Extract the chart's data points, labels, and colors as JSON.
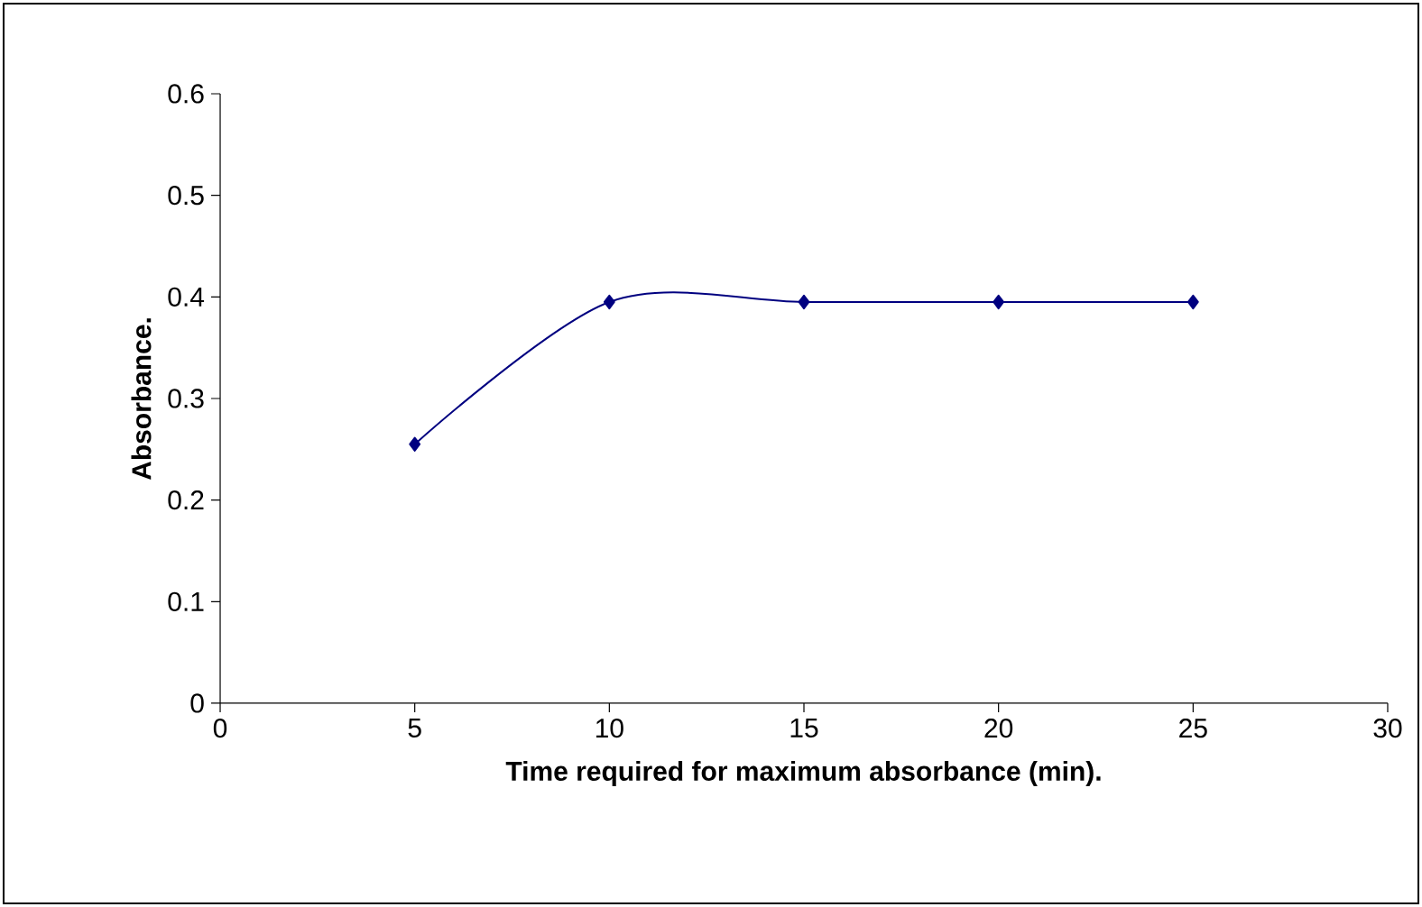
{
  "chart_data": {
    "type": "line",
    "xlabel": "Time required for maximum absorbance (min).",
    "ylabel": "Absorbance.",
    "x": [
      5,
      10,
      15,
      20,
      25
    ],
    "series": [
      {
        "color": "#000080",
        "values": [
          0.255,
          0.395,
          0.395,
          0.395,
          0.395
        ]
      }
    ],
    "xlim": [
      0,
      30
    ],
    "xticks": [
      0,
      5,
      10,
      15,
      20,
      25,
      30
    ],
    "ylim": [
      0,
      0.6
    ],
    "yticks": [
      0,
      0.1,
      0.2,
      0.3,
      0.4,
      0.5,
      0.6
    ],
    "marker": "diamond",
    "line_style": "solid",
    "grid": false
  }
}
